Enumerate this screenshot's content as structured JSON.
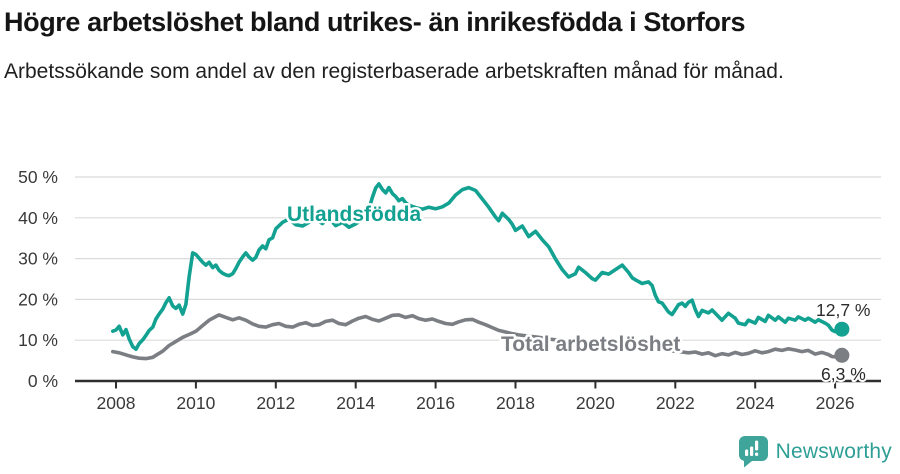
{
  "header": {
    "title": "Högre arbetslöshet bland utrikes- än inrikesfödda i Storfors",
    "subtitle": "Arbetssökande som andel av den registerbaserade arbetskraften månad för månad."
  },
  "footer": {
    "brand": "Newsworthy"
  },
  "chart_data": {
    "type": "line",
    "title": "Högre arbetslöshet bland utrikes- än inrikesfödda i Storfors",
    "subtitle": "Arbetssökande som andel av den registerbaserade arbetskraften månad för månad.",
    "x_axis": {
      "range": [
        2007.0,
        2027.1
      ],
      "ticks": [
        {
          "value": 2008,
          "label": "2008"
        },
        {
          "value": 2010,
          "label": "2010"
        },
        {
          "value": 2012,
          "label": "2012"
        },
        {
          "value": 2014,
          "label": "2014"
        },
        {
          "value": 2016,
          "label": "2016"
        },
        {
          "value": 2018,
          "label": "2018"
        },
        {
          "value": 2020,
          "label": "2020"
        },
        {
          "value": 2022,
          "label": "2022"
        },
        {
          "value": 2024,
          "label": "2024"
        },
        {
          "value": 2026,
          "label": "2026"
        }
      ]
    },
    "y_axis": {
      "range": [
        0,
        50
      ],
      "unit": "%",
      "ticks": [
        {
          "value": 0,
          "label": "0 %"
        },
        {
          "value": 10,
          "label": "10 %"
        },
        {
          "value": 20,
          "label": "20 %"
        },
        {
          "value": 30,
          "label": "30 %"
        },
        {
          "value": 40,
          "label": "40 %"
        },
        {
          "value": 50,
          "label": "50 %"
        }
      ]
    },
    "style": {
      "grid_color": "#dbdbdb",
      "axis_color": "#2e2e2e",
      "tick_label_color": "#3a3a3a",
      "annotation_color": "#2b2b2b",
      "grid": true,
      "legend_position": "inline-labels"
    },
    "series": [
      {
        "id": "total",
        "name": "Total arbetslöshet",
        "color": "#7b7e83",
        "end_label": "6,3 %",
        "end_value": 6.3,
        "points": [
          [
            2007.92,
            7.2
          ],
          [
            2008.08,
            6.9
          ],
          [
            2008.25,
            6.4
          ],
          [
            2008.42,
            5.9
          ],
          [
            2008.58,
            5.6
          ],
          [
            2008.75,
            5.5
          ],
          [
            2008.92,
            5.8
          ],
          [
            2009.0,
            6.3
          ],
          [
            2009.17,
            7.3
          ],
          [
            2009.33,
            8.7
          ],
          [
            2009.5,
            9.7
          ],
          [
            2009.67,
            10.7
          ],
          [
            2009.83,
            11.4
          ],
          [
            2010.0,
            12.2
          ],
          [
            2010.17,
            13.6
          ],
          [
            2010.33,
            14.9
          ],
          [
            2010.5,
            15.8
          ],
          [
            2010.58,
            16.2
          ],
          [
            2010.75,
            15.6
          ],
          [
            2010.92,
            15.0
          ],
          [
            2011.08,
            15.5
          ],
          [
            2011.25,
            14.9
          ],
          [
            2011.42,
            14.0
          ],
          [
            2011.58,
            13.4
          ],
          [
            2011.75,
            13.2
          ],
          [
            2011.92,
            13.8
          ],
          [
            2012.08,
            14.1
          ],
          [
            2012.25,
            13.4
          ],
          [
            2012.42,
            13.2
          ],
          [
            2012.58,
            13.9
          ],
          [
            2012.75,
            14.3
          ],
          [
            2012.92,
            13.6
          ],
          [
            2013.08,
            13.8
          ],
          [
            2013.25,
            14.6
          ],
          [
            2013.42,
            14.9
          ],
          [
            2013.58,
            14.1
          ],
          [
            2013.75,
            13.8
          ],
          [
            2013.92,
            14.7
          ],
          [
            2014.08,
            15.4
          ],
          [
            2014.25,
            15.8
          ],
          [
            2014.42,
            15.1
          ],
          [
            2014.58,
            14.7
          ],
          [
            2014.75,
            15.4
          ],
          [
            2014.92,
            16.1
          ],
          [
            2015.08,
            16.2
          ],
          [
            2015.25,
            15.6
          ],
          [
            2015.42,
            16.0
          ],
          [
            2015.58,
            15.3
          ],
          [
            2015.75,
            14.9
          ],
          [
            2015.92,
            15.2
          ],
          [
            2016.08,
            14.6
          ],
          [
            2016.25,
            14.1
          ],
          [
            2016.42,
            13.9
          ],
          [
            2016.58,
            14.5
          ],
          [
            2016.75,
            15.0
          ],
          [
            2016.92,
            15.1
          ],
          [
            2017.08,
            14.4
          ],
          [
            2017.25,
            13.8
          ],
          [
            2017.42,
            13.1
          ],
          [
            2017.58,
            12.4
          ],
          [
            2017.75,
            12.0
          ],
          [
            2017.92,
            11.6
          ],
          [
            2018.08,
            11.3
          ],
          [
            2018.33,
            11.0
          ],
          [
            2018.58,
            10.7
          ],
          [
            2018.83,
            10.3
          ],
          [
            2019.08,
            10.0
          ],
          [
            2019.33,
            9.8
          ],
          [
            2019.58,
            9.6
          ],
          [
            2019.83,
            9.4
          ],
          [
            2020.08,
            9.5
          ],
          [
            2020.33,
            9.7
          ],
          [
            2020.58,
            9.4
          ],
          [
            2020.83,
            9.0
          ],
          [
            2021.08,
            8.7
          ],
          [
            2021.33,
            8.3
          ],
          [
            2021.58,
            7.9
          ],
          [
            2021.83,
            7.5
          ],
          [
            2022.0,
            7.3
          ],
          [
            2022.17,
            7.1
          ],
          [
            2022.33,
            6.9
          ],
          [
            2022.5,
            7.1
          ],
          [
            2022.67,
            6.6
          ],
          [
            2022.83,
            6.9
          ],
          [
            2023.0,
            6.2
          ],
          [
            2023.17,
            6.7
          ],
          [
            2023.33,
            6.4
          ],
          [
            2023.5,
            7.0
          ],
          [
            2023.67,
            6.5
          ],
          [
            2023.83,
            6.8
          ],
          [
            2024.0,
            7.4
          ],
          [
            2024.17,
            6.9
          ],
          [
            2024.33,
            7.2
          ],
          [
            2024.5,
            7.8
          ],
          [
            2024.67,
            7.5
          ],
          [
            2024.83,
            7.9
          ],
          [
            2025.0,
            7.6
          ],
          [
            2025.17,
            7.2
          ],
          [
            2025.33,
            7.5
          ],
          [
            2025.5,
            6.6
          ],
          [
            2025.67,
            7.0
          ],
          [
            2025.83,
            6.5
          ],
          [
            2025.92,
            6.0
          ],
          [
            2026.0,
            5.9
          ],
          [
            2026.17,
            6.3
          ]
        ]
      },
      {
        "id": "utlandsfodda",
        "name": "Utlandsfödda",
        "color": "#13a191",
        "end_label": "12,7 %",
        "end_value": 12.7,
        "points": [
          [
            2007.92,
            12.2
          ],
          [
            2008.0,
            12.5
          ],
          [
            2008.08,
            13.4
          ],
          [
            2008.17,
            11.3
          ],
          [
            2008.25,
            12.6
          ],
          [
            2008.33,
            10.3
          ],
          [
            2008.42,
            8.4
          ],
          [
            2008.5,
            7.8
          ],
          [
            2008.58,
            9.2
          ],
          [
            2008.67,
            10.1
          ],
          [
            2008.75,
            11.2
          ],
          [
            2008.83,
            12.4
          ],
          [
            2008.92,
            13.2
          ],
          [
            2009.0,
            15.2
          ],
          [
            2009.08,
            16.4
          ],
          [
            2009.17,
            17.6
          ],
          [
            2009.25,
            19.2
          ],
          [
            2009.33,
            20.4
          ],
          [
            2009.42,
            18.4
          ],
          [
            2009.5,
            17.8
          ],
          [
            2009.58,
            18.6
          ],
          [
            2009.67,
            16.4
          ],
          [
            2009.75,
            18.8
          ],
          [
            2009.83,
            25.5
          ],
          [
            2009.92,
            31.4
          ],
          [
            2010.0,
            31.0
          ],
          [
            2010.08,
            30.1
          ],
          [
            2010.17,
            29.1
          ],
          [
            2010.25,
            28.4
          ],
          [
            2010.33,
            29.1
          ],
          [
            2010.42,
            27.8
          ],
          [
            2010.5,
            28.4
          ],
          [
            2010.58,
            27.1
          ],
          [
            2010.67,
            26.4
          ],
          [
            2010.75,
            26.0
          ],
          [
            2010.83,
            25.8
          ],
          [
            2010.92,
            26.3
          ],
          [
            2011.0,
            27.6
          ],
          [
            2011.08,
            29.1
          ],
          [
            2011.17,
            30.4
          ],
          [
            2011.25,
            31.4
          ],
          [
            2011.33,
            30.4
          ],
          [
            2011.42,
            29.6
          ],
          [
            2011.5,
            30.3
          ],
          [
            2011.58,
            32.1
          ],
          [
            2011.67,
            33.1
          ],
          [
            2011.75,
            32.4
          ],
          [
            2011.83,
            34.6
          ],
          [
            2011.92,
            35.1
          ],
          [
            2012.0,
            37.3
          ],
          [
            2012.17,
            38.9
          ],
          [
            2012.33,
            39.7
          ],
          [
            2012.5,
            38.3
          ],
          [
            2012.67,
            38.0
          ],
          [
            2012.83,
            38.9
          ],
          [
            2013.0,
            39.5
          ],
          [
            2013.17,
            38.6
          ],
          [
            2013.33,
            39.9
          ],
          [
            2013.5,
            38.1
          ],
          [
            2013.67,
            38.9
          ],
          [
            2013.83,
            37.7
          ],
          [
            2014.0,
            38.5
          ],
          [
            2014.17,
            39.6
          ],
          [
            2014.33,
            42.1
          ],
          [
            2014.42,
            45.1
          ],
          [
            2014.5,
            47.3
          ],
          [
            2014.58,
            48.3
          ],
          [
            2014.67,
            46.9
          ],
          [
            2014.75,
            46.1
          ],
          [
            2014.83,
            47.4
          ],
          [
            2014.92,
            45.9
          ],
          [
            2015.0,
            45.2
          ],
          [
            2015.08,
            44.2
          ],
          [
            2015.17,
            44.7
          ],
          [
            2015.25,
            43.7
          ],
          [
            2015.33,
            43.1
          ],
          [
            2015.5,
            42.5
          ],
          [
            2015.67,
            42.1
          ],
          [
            2015.83,
            42.6
          ],
          [
            2016.0,
            42.2
          ],
          [
            2016.17,
            42.7
          ],
          [
            2016.33,
            43.6
          ],
          [
            2016.5,
            45.6
          ],
          [
            2016.67,
            46.9
          ],
          [
            2016.83,
            47.4
          ],
          [
            2017.0,
            46.7
          ],
          [
            2017.17,
            44.6
          ],
          [
            2017.33,
            42.6
          ],
          [
            2017.5,
            40.2
          ],
          [
            2017.58,
            39.3
          ],
          [
            2017.67,
            41.1
          ],
          [
            2017.83,
            39.6
          ],
          [
            2017.92,
            38.4
          ],
          [
            2018.0,
            36.9
          ],
          [
            2018.17,
            38.0
          ],
          [
            2018.33,
            35.4
          ],
          [
            2018.5,
            36.7
          ],
          [
            2018.67,
            34.6
          ],
          [
            2018.83,
            32.9
          ],
          [
            2019.0,
            29.9
          ],
          [
            2019.17,
            27.3
          ],
          [
            2019.33,
            25.5
          ],
          [
            2019.5,
            26.3
          ],
          [
            2019.58,
            27.9
          ],
          [
            2019.75,
            26.6
          ],
          [
            2019.92,
            25.1
          ],
          [
            2020.0,
            24.7
          ],
          [
            2020.17,
            26.6
          ],
          [
            2020.33,
            26.2
          ],
          [
            2020.5,
            27.3
          ],
          [
            2020.67,
            28.4
          ],
          [
            2020.83,
            26.6
          ],
          [
            2020.92,
            25.3
          ],
          [
            2021.0,
            24.8
          ],
          [
            2021.17,
            23.9
          ],
          [
            2021.33,
            24.3
          ],
          [
            2021.42,
            23.4
          ],
          [
            2021.5,
            21.0
          ],
          [
            2021.58,
            19.4
          ],
          [
            2021.67,
            19.1
          ],
          [
            2021.83,
            16.9
          ],
          [
            2021.92,
            16.3
          ],
          [
            2022.0,
            17.5
          ],
          [
            2022.08,
            18.7
          ],
          [
            2022.17,
            19.1
          ],
          [
            2022.25,
            18.3
          ],
          [
            2022.33,
            19.3
          ],
          [
            2022.42,
            19.8
          ],
          [
            2022.5,
            17.5
          ],
          [
            2022.58,
            15.8
          ],
          [
            2022.67,
            17.3
          ],
          [
            2022.83,
            16.7
          ],
          [
            2022.92,
            17.4
          ],
          [
            2023.08,
            15.8
          ],
          [
            2023.17,
            14.9
          ],
          [
            2023.33,
            16.6
          ],
          [
            2023.5,
            15.4
          ],
          [
            2023.58,
            14.2
          ],
          [
            2023.75,
            13.8
          ],
          [
            2023.83,
            14.9
          ],
          [
            2024.0,
            14.2
          ],
          [
            2024.08,
            15.6
          ],
          [
            2024.25,
            14.6
          ],
          [
            2024.33,
            16.1
          ],
          [
            2024.5,
            14.9
          ],
          [
            2024.58,
            15.7
          ],
          [
            2024.75,
            14.4
          ],
          [
            2024.83,
            15.4
          ],
          [
            2025.0,
            14.9
          ],
          [
            2025.08,
            15.7
          ],
          [
            2025.25,
            14.9
          ],
          [
            2025.33,
            15.4
          ],
          [
            2025.5,
            14.4
          ],
          [
            2025.58,
            15.0
          ],
          [
            2025.75,
            14.2
          ],
          [
            2025.83,
            13.7
          ],
          [
            2025.92,
            12.5
          ],
          [
            2026.0,
            12.1
          ],
          [
            2026.17,
            12.7
          ]
        ]
      }
    ]
  }
}
